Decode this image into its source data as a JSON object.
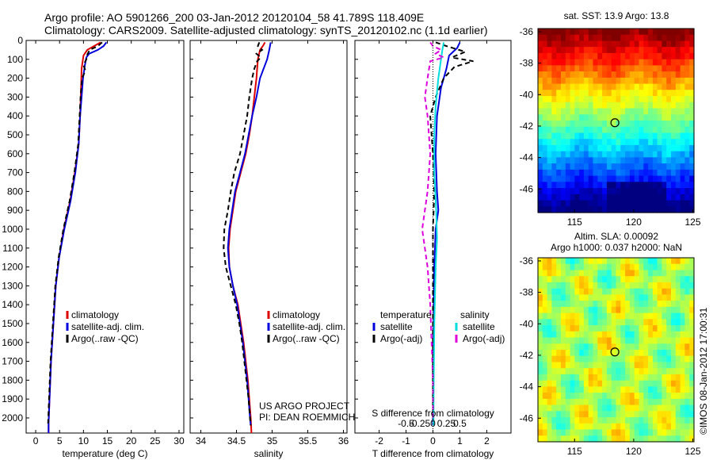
{
  "header": {
    "line1": "Argo profile: AO 5901266_200 03-Jan-2012 20120104_58 41.789S 118.409E",
    "line2": "Climatology: CARS2009. Satellite-adjusted climatology: synTS_20120102.nc (1.1d earlier)"
  },
  "watermark": "©IMOS 08-Jan-2012 17:00:31",
  "chart_data": [
    {
      "type": "line",
      "id": "temperature",
      "xlabel": "temperature (deg C)",
      "ylabel": "",
      "xlim": [
        -2,
        31
      ],
      "ylim": [
        2080,
        0
      ],
      "xticks": [
        0,
        5,
        10,
        15,
        20,
        25,
        30
      ],
      "yticks": [
        0,
        100,
        200,
        300,
        400,
        500,
        600,
        700,
        800,
        900,
        1000,
        1100,
        1200,
        1300,
        1400,
        1500,
        1600,
        1700,
        1800,
        1900,
        2000
      ],
      "legend": [
        "climatology",
        "satellite-adj. clim.",
        "Argo(..raw -QC)"
      ],
      "series": [
        {
          "name": "climatology",
          "color": "#dd0000",
          "dash": "",
          "points": [
            [
              13.6,
              10
            ],
            [
              12.2,
              30
            ],
            [
              10.8,
              50
            ],
            [
              10.0,
              80
            ],
            [
              9.6,
              150
            ],
            [
              9.5,
              250
            ],
            [
              9.3,
              400
            ],
            [
              9.0,
              550
            ],
            [
              8.2,
              700
            ],
            [
              7.2,
              850
            ],
            [
              5.9,
              1000
            ],
            [
              4.9,
              1150
            ],
            [
              4.2,
              1300
            ],
            [
              3.7,
              1500
            ],
            [
              3.2,
              1700
            ],
            [
              2.9,
              1900
            ],
            [
              2.7,
              2030
            ],
            [
              2.7,
              2080
            ]
          ]
        },
        {
          "name": "satellite-adj. clim.",
          "color": "#0000dd",
          "dash": "",
          "points": [
            [
              14.8,
              10
            ],
            [
              14.2,
              30
            ],
            [
              13.0,
              50
            ],
            [
              11.2,
              70
            ],
            [
              10.6,
              90
            ],
            [
              10.3,
              130
            ],
            [
              9.9,
              200
            ],
            [
              9.6,
              300
            ],
            [
              9.3,
              400
            ],
            [
              9.0,
              550
            ],
            [
              8.3,
              700
            ],
            [
              7.3,
              850
            ],
            [
              6.0,
              1000
            ],
            [
              4.9,
              1150
            ],
            [
              4.2,
              1300
            ],
            [
              3.7,
              1500
            ],
            [
              3.2,
              1700
            ],
            [
              2.9,
              1900
            ],
            [
              2.7,
              2030
            ],
            [
              2.7,
              2080
            ]
          ]
        },
        {
          "name": "Argo(..raw -QC)",
          "color": "#000000",
          "dash": "6 4",
          "points": [
            [
              13.9,
              10
            ],
            [
              13.0,
              30
            ],
            [
              11.3,
              50
            ],
            [
              10.8,
              75
            ],
            [
              10.6,
              100
            ],
            [
              10.0,
              130
            ],
            [
              10.4,
              160
            ],
            [
              9.7,
              200
            ],
            [
              9.4,
              300
            ],
            [
              9.2,
              400
            ],
            [
              8.9,
              550
            ],
            [
              8.1,
              700
            ],
            [
              7.1,
              850
            ],
            [
              5.8,
              1000
            ],
            [
              4.8,
              1150
            ],
            [
              4.1,
              1300
            ],
            [
              3.6,
              1500
            ],
            [
              3.1,
              1700
            ],
            [
              2.8,
              1900
            ],
            [
              2.6,
              2030
            ]
          ]
        }
      ]
    },
    {
      "type": "line",
      "id": "salinity",
      "xlabel": "salinity",
      "xlim": [
        33.85,
        36.05
      ],
      "ylim": [
        2080,
        0
      ],
      "xticks": [
        34,
        34.5,
        35,
        35.5,
        36
      ],
      "legend": [
        "climatology",
        "satellite-adj. clim.",
        "Argo(..raw -QC)"
      ],
      "series": [
        {
          "name": "climatology",
          "color": "#dd0000",
          "dash": "",
          "points": [
            [
              34.9,
              10
            ],
            [
              34.87,
              30
            ],
            [
              34.83,
              50
            ],
            [
              34.8,
              100
            ],
            [
              34.78,
              200
            ],
            [
              34.75,
              300
            ],
            [
              34.72,
              400
            ],
            [
              34.68,
              500
            ],
            [
              34.63,
              600
            ],
            [
              34.56,
              700
            ],
            [
              34.49,
              800
            ],
            [
              34.45,
              900
            ],
            [
              34.41,
              1000
            ],
            [
              34.39,
              1100
            ],
            [
              34.4,
              1200
            ],
            [
              34.45,
              1300
            ],
            [
              34.52,
              1400
            ],
            [
              34.56,
              1500
            ],
            [
              34.6,
              1600
            ],
            [
              34.63,
              1700
            ],
            [
              34.66,
              1800
            ],
            [
              34.68,
              1900
            ],
            [
              34.7,
              2000
            ],
            [
              34.71,
              2080
            ]
          ]
        },
        {
          "name": "satellite-adj. clim.",
          "color": "#0000dd",
          "dash": "",
          "points": [
            [
              34.98,
              10
            ],
            [
              34.97,
              30
            ],
            [
              34.96,
              50
            ],
            [
              34.93,
              100
            ],
            [
              34.88,
              150
            ],
            [
              34.83,
              200
            ],
            [
              34.78,
              300
            ],
            [
              34.72,
              400
            ],
            [
              34.67,
              500
            ],
            [
              34.62,
              600
            ],
            [
              34.55,
              700
            ],
            [
              34.48,
              800
            ],
            [
              34.44,
              900
            ],
            [
              34.4,
              1000
            ],
            [
              34.38,
              1100
            ],
            [
              34.4,
              1200
            ],
            [
              34.45,
              1300
            ],
            [
              34.51,
              1400
            ],
            [
              34.55,
              1500
            ],
            [
              34.59,
              1600
            ],
            [
              34.62,
              1700
            ],
            [
              34.65,
              1800
            ],
            [
              34.67,
              1900
            ],
            [
              34.69,
              2000
            ],
            [
              34.7,
              2040
            ]
          ]
        },
        {
          "name": "Argo(..raw -QC)",
          "color": "#000000",
          "dash": "6 4",
          "points": [
            [
              34.82,
              10
            ],
            [
              34.8,
              30
            ],
            [
              34.86,
              50
            ],
            [
              34.78,
              70
            ],
            [
              34.84,
              90
            ],
            [
              34.79,
              110
            ],
            [
              34.75,
              150
            ],
            [
              34.72,
              200
            ],
            [
              34.68,
              300
            ],
            [
              34.65,
              400
            ],
            [
              34.6,
              500
            ],
            [
              34.55,
              600
            ],
            [
              34.47,
              700
            ],
            [
              34.42,
              800
            ],
            [
              34.38,
              900
            ],
            [
              34.33,
              1000
            ],
            [
              34.32,
              1100
            ],
            [
              34.35,
              1200
            ],
            [
              34.42,
              1300
            ],
            [
              34.49,
              1400
            ],
            [
              34.54,
              1500
            ],
            [
              34.58,
              1600
            ],
            [
              34.61,
              1700
            ],
            [
              34.64,
              1800
            ],
            [
              34.67,
              1900
            ],
            [
              34.69,
              2000
            ],
            [
              34.7,
              2040
            ]
          ]
        }
      ]
    },
    {
      "type": "line",
      "id": "difference",
      "xlabel": "T difference from climatology",
      "xlabel2": "S difference from climatology",
      "xlim": [
        -2.9,
        2.9
      ],
      "ylim": [
        2080,
        0
      ],
      "xticks": [
        -2,
        -1,
        0,
        1,
        2
      ],
      "xticks2": [
        -0.5,
        -0.25,
        0,
        0.25,
        0.5
      ],
      "xticks2_labels": [
        "-0.5",
        "-0.25",
        "0",
        "0.25",
        "0.5"
      ],
      "legend": {
        "temperature_heading": "temperature",
        "salinity_heading": "salinity",
        "items": [
          "satellite",
          "Argo(-adj)",
          "satellite",
          "Argo(-adj)"
        ]
      },
      "series": [
        {
          "name": "satellite",
          "color": "#0000dd",
          "dash": "",
          "points": [
            [
              1.0,
              10
            ],
            [
              0.9,
              40
            ],
            [
              0.6,
              80
            ],
            [
              0.5,
              150
            ],
            [
              0.3,
              250
            ],
            [
              0.15,
              400
            ],
            [
              0.1,
              600
            ],
            [
              0.15,
              800
            ],
            [
              0.2,
              900
            ],
            [
              0.1,
              1000
            ],
            [
              0.05,
              1200
            ],
            [
              0.02,
              1500
            ],
            [
              0.0,
              1800
            ],
            [
              0.0,
              2000
            ],
            [
              0.0,
              2040
            ]
          ]
        },
        {
          "name": "Argo(-adj)",
          "color": "#000000",
          "dash": "6 4",
          "points": [
            [
              0.1,
              10
            ],
            [
              0.5,
              30
            ],
            [
              1.2,
              60
            ],
            [
              0.7,
              90
            ],
            [
              1.5,
              110
            ],
            [
              0.8,
              140
            ],
            [
              0.4,
              200
            ],
            [
              0.1,
              300
            ],
            [
              -0.1,
              400
            ],
            [
              0.0,
              600
            ],
            [
              0.05,
              800
            ],
            [
              0.0,
              1000
            ],
            [
              0.0,
              1500
            ],
            [
              0.0,
              2000
            ]
          ]
        },
        {
          "name": "satellite",
          "color": "#00dddd",
          "dash": "",
          "points": [
            [
              0.4,
              10
            ],
            [
              0.35,
              50
            ],
            [
              0.3,
              100
            ],
            [
              0.2,
              200
            ],
            [
              0.1,
              350
            ],
            [
              0.05,
              500
            ],
            [
              0.05,
              700
            ],
            [
              0.12,
              900
            ],
            [
              0.15,
              1050
            ],
            [
              0.1,
              1200
            ],
            [
              0.05,
              1500
            ],
            [
              0.03,
              1800
            ],
            [
              0.02,
              2000
            ],
            [
              0.02,
              2040
            ]
          ]
        },
        {
          "name": "Argo(-adj)",
          "color": "#dd00dd",
          "dash": "6 4",
          "points": [
            [
              -0.1,
              10
            ],
            [
              0.0,
              30
            ],
            [
              0.3,
              50
            ],
            [
              0.1,
              70
            ],
            [
              0.4,
              90
            ],
            [
              -0.1,
              110
            ],
            [
              -0.2,
              200
            ],
            [
              -0.3,
              300
            ],
            [
              -0.2,
              400
            ],
            [
              -0.1,
              600
            ],
            [
              -0.2,
              800
            ],
            [
              -0.3,
              900
            ],
            [
              -0.4,
              1000
            ],
            [
              -0.3,
              1100
            ],
            [
              -0.2,
              1200
            ],
            [
              -0.1,
              1400
            ],
            [
              -0.05,
              1600
            ],
            [
              0.0,
              1800
            ],
            [
              0.0,
              2000
            ]
          ]
        }
      ]
    },
    {
      "type": "heatmap",
      "id": "sst_map",
      "title": "sat. SST: 13.9  Argo: 13.8",
      "xlim": [
        111.9,
        125.1
      ],
      "ylim": [
        -47.5,
        -35.8
      ],
      "xticks": [
        115,
        120,
        125
      ],
      "yticks": [
        -36,
        -38,
        -40,
        -42,
        -44,
        -46
      ],
      "marker": {
        "lon": 118.409,
        "lat": -41.789
      }
    },
    {
      "type": "heatmap",
      "id": "sla_map",
      "title1": "Altim. SLA: 0.00092",
      "title2": "Argo h1000: 0.037  h2000: NaN",
      "xlim": [
        111.9,
        125.1
      ],
      "ylim": [
        -47.5,
        -35.8
      ],
      "xticks": [
        115,
        120,
        125
      ],
      "yticks": [
        -36,
        -38,
        -40,
        -42,
        -44,
        -46
      ],
      "marker": {
        "lon": 118.409,
        "lat": -41.789
      }
    }
  ],
  "project_text": {
    "line1": "US ARGO PROJECT",
    "line2": "PI: DEAN ROEMMICH"
  }
}
